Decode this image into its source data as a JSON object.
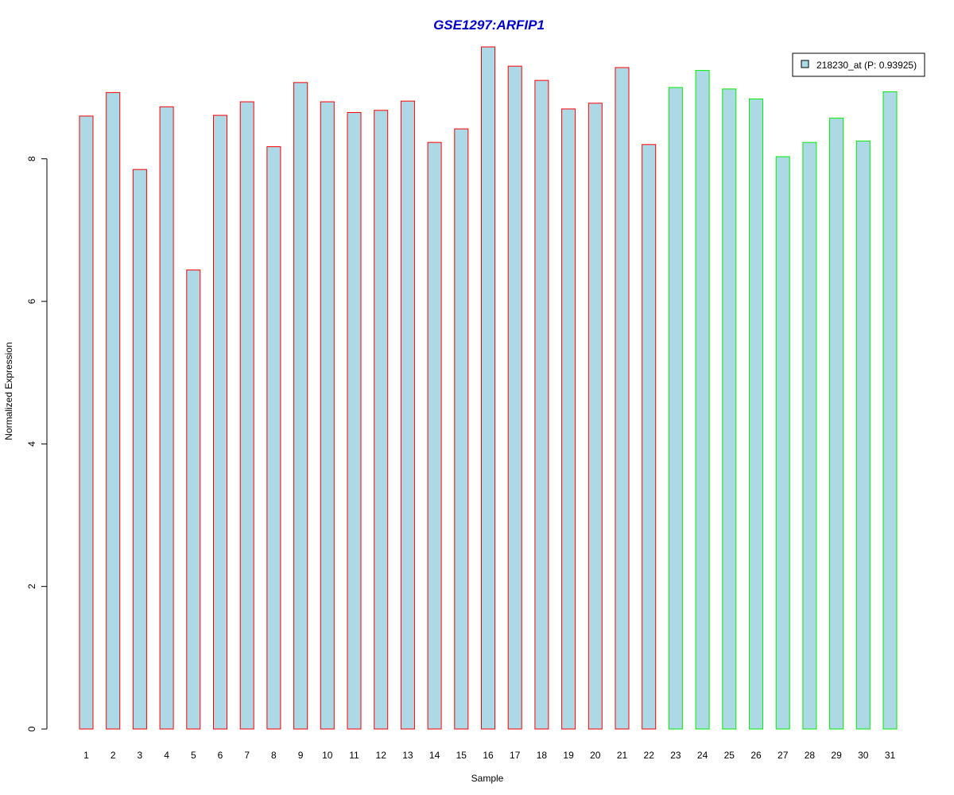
{
  "chart_data": {
    "type": "bar",
    "title": "GSE1297:ARFIP1",
    "xlabel": "Sample",
    "ylabel": "Normalized Expression",
    "categories": [
      "1",
      "2",
      "3",
      "4",
      "5",
      "6",
      "7",
      "8",
      "9",
      "10",
      "11",
      "12",
      "13",
      "14",
      "15",
      "16",
      "17",
      "18",
      "19",
      "20",
      "21",
      "22",
      "23",
      "24",
      "25",
      "26",
      "27",
      "28",
      "29",
      "30",
      "31"
    ],
    "values": [
      8.6,
      8.93,
      7.85,
      8.73,
      6.44,
      8.61,
      8.8,
      8.17,
      9.07,
      8.8,
      8.65,
      8.68,
      8.81,
      8.23,
      8.42,
      9.57,
      9.3,
      9.1,
      8.7,
      8.78,
      9.28,
      8.2,
      9.0,
      9.24,
      8.98,
      8.84,
      8.03,
      8.23,
      8.57,
      8.25,
      8.94
    ],
    "group_of_sample": [
      "a",
      "a",
      "a",
      "a",
      "a",
      "a",
      "a",
      "a",
      "a",
      "a",
      "a",
      "a",
      "a",
      "a",
      "a",
      "a",
      "a",
      "a",
      "a",
      "a",
      "a",
      "a",
      "b",
      "b",
      "b",
      "b",
      "b",
      "b",
      "b",
      "b",
      "b"
    ],
    "yticks": [
      "0",
      "2",
      "4",
      "6",
      "8"
    ],
    "ylim": [
      0,
      9.57
    ],
    "grid": false,
    "legend": {
      "position": "top-right",
      "entries": [
        {
          "label": "218230_at (P: 0.93925)"
        }
      ]
    },
    "colors": {
      "title": "#0000cc",
      "bar_fill": "#add8e6",
      "border_group_a": "#ff0000",
      "border_group_b": "#00ee00",
      "axis": "#000000"
    }
  }
}
